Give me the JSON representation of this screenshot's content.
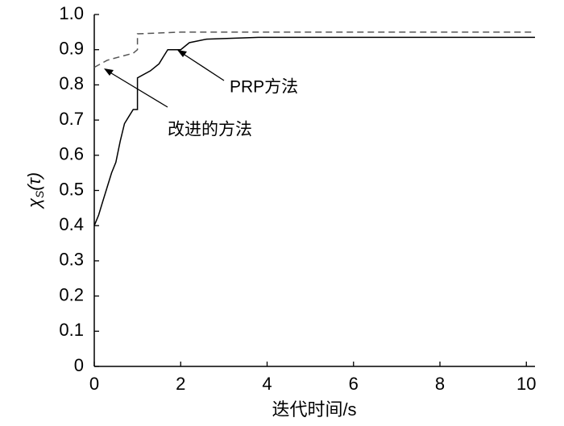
{
  "chart_data": {
    "type": "line",
    "xlabel": "迭代时间/s",
    "ylabel": [
      "χ",
      "S",
      "(τ)"
    ],
    "xlim": [
      0,
      10.2
    ],
    "ylim": [
      0,
      1
    ],
    "xticks": [
      0,
      2,
      4,
      6,
      8,
      10
    ],
    "yticks": [
      0,
      0.1,
      0.2,
      0.3,
      0.4,
      0.5,
      0.6,
      0.7,
      0.8,
      0.9,
      {
        "value": 1,
        "label": "1.0"
      }
    ],
    "series": [
      {
        "name": "PRP方法",
        "color": "#000000",
        "dash": false,
        "x": [
          0,
          0.1,
          0.2,
          0.3,
          0.4,
          0.5,
          0.6,
          0.7,
          0.8,
          0.9,
          1.0,
          1.0,
          1.3,
          1.5,
          1.6,
          1.7,
          2.0,
          2.2,
          2.6,
          3.8,
          10.2
        ],
        "values": [
          0.4,
          0.43,
          0.47,
          0.51,
          0.55,
          0.58,
          0.64,
          0.69,
          0.71,
          0.73,
          0.73,
          0.82,
          0.84,
          0.86,
          0.88,
          0.9,
          0.9,
          0.92,
          0.93,
          0.935,
          0.935
        ]
      },
      {
        "name": "改进的方法",
        "color": "#555555",
        "dash": true,
        "x": [
          0,
          0.3,
          0.6,
          0.9,
          1.0,
          1.0,
          2.0,
          10.2
        ],
        "values": [
          0.85,
          0.87,
          0.88,
          0.89,
          0.9,
          0.945,
          0.95,
          0.95
        ]
      }
    ]
  }
}
